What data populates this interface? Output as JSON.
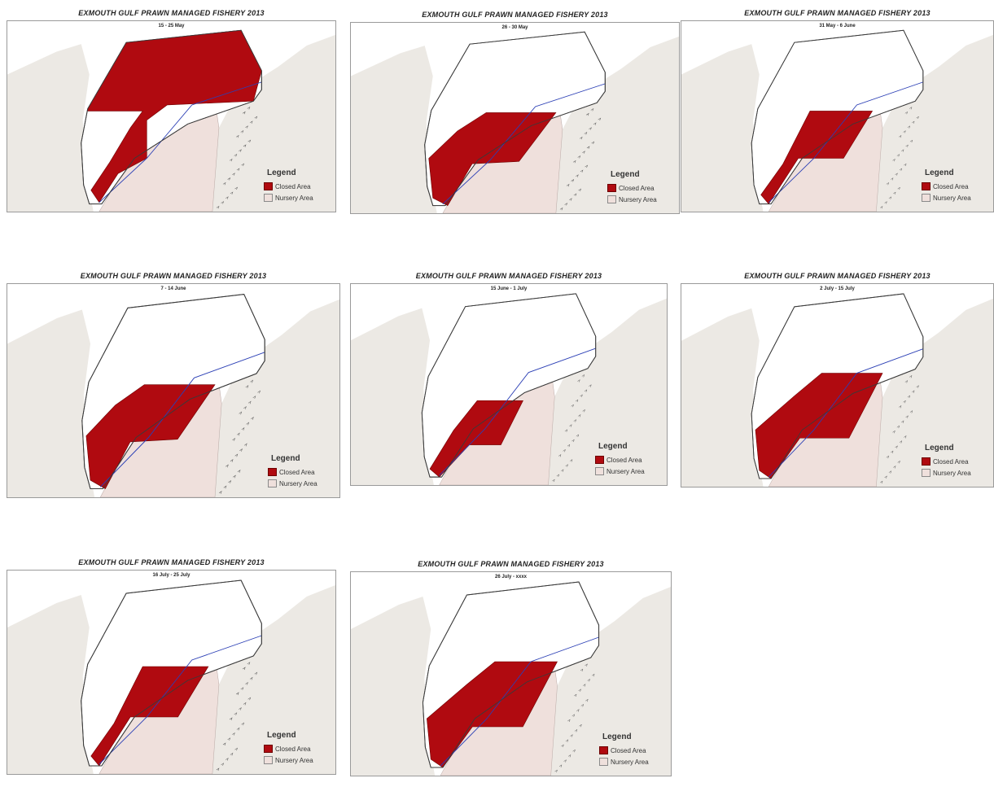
{
  "legend": {
    "title": "Legend",
    "closed_label": "Closed Area",
    "nursery_label": "Nursery Area"
  },
  "colors": {
    "closed": "#b00a10",
    "nursery": "#efe0dc",
    "land": "#ece9e4",
    "boundary": "#3a3a3a",
    "line": "#2b3fb5"
  },
  "panels": [
    {
      "title": "EXMOUTH GULF PRAWN MANAGED FISHERY 2013",
      "date": "15 - 25 May",
      "closure": "north"
    },
    {
      "title": "EXMOUTH GULF PRAWN MANAGED FISHERY 2013",
      "date": "26 - 30 May",
      "closure": "south-wide"
    },
    {
      "title": "EXMOUTH GULF PRAWN MANAGED FISHERY 2013",
      "date": "31 May - 6 June",
      "closure": "south-narrow"
    },
    {
      "title": "EXMOUTH GULF PRAWN MANAGED FISHERY 2013",
      "date": "7 - 14 June",
      "closure": "south-wide"
    },
    {
      "title": "EXMOUTH GULF PRAWN MANAGED FISHERY 2013",
      "date": "15 June - 1 July",
      "closure": "south-small"
    },
    {
      "title": "EXMOUTH GULF PRAWN MANAGED FISHERY 2013",
      "date": "2 July - 15 July",
      "closure": "south-large"
    },
    {
      "title": "EXMOUTH GULF PRAWN MANAGED FISHERY 2013",
      "date": "16 July - 25 July",
      "closure": "south-narrow"
    },
    {
      "title": "EXMOUTH GULF PRAWN MANAGED FISHERY 2013",
      "date": "26 July - xxxx",
      "closure": "south-large"
    }
  ]
}
